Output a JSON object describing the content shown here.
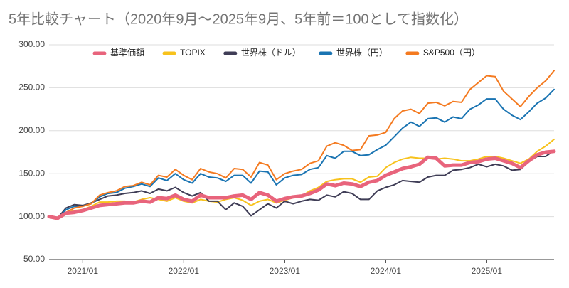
{
  "chart_data": {
    "type": "line",
    "title": "5年比較チャート（2020年9月～2025年9月、5年前＝100として指数化）",
    "categories": [
      null,
      null,
      null,
      null,
      "2021/01",
      null,
      null,
      null,
      null,
      null,
      null,
      null,
      null,
      null,
      null,
      null,
      "2022/01",
      null,
      null,
      null,
      null,
      null,
      null,
      null,
      null,
      null,
      null,
      null,
      "2023/01",
      null,
      null,
      null,
      null,
      null,
      null,
      null,
      null,
      null,
      null,
      null,
      "2024/01",
      null,
      null,
      null,
      null,
      null,
      null,
      null,
      null,
      null,
      null,
      null,
      "2025/01",
      null,
      null,
      null,
      null,
      null,
      null,
      null,
      null
    ],
    "series": [
      {
        "name": "基準価額",
        "color": "#e8647c",
        "values": [
          100,
          98,
          104,
          105,
          107,
          110,
          113,
          114,
          115,
          116,
          116,
          118,
          117,
          122,
          121,
          125,
          120,
          118,
          125,
          122,
          122,
          122,
          124,
          125,
          120,
          128,
          125,
          118,
          121,
          123,
          124,
          127,
          131,
          138,
          136,
          139,
          138,
          135,
          140,
          142,
          148,
          152,
          156,
          158,
          161,
          169,
          168,
          159,
          160,
          160,
          163,
          164,
          167,
          168,
          165,
          162,
          157,
          165,
          172,
          175,
          176
        ]
      },
      {
        "name": "TOPIX",
        "color": "#f7c21c",
        "values": [
          100,
          97,
          105,
          107,
          108,
          112,
          117,
          117,
          118,
          118,
          117,
          120,
          122,
          120,
          118,
          122,
          118,
          116,
          120,
          118,
          117,
          120,
          122,
          119,
          113,
          118,
          120,
          116,
          119,
          122,
          124,
          130,
          134,
          141,
          143,
          144,
          144,
          140,
          146,
          147,
          157,
          163,
          167,
          169,
          168,
          168,
          167,
          168,
          167,
          165,
          165,
          167,
          170,
          170,
          168,
          165,
          162,
          167,
          176,
          182,
          190
        ]
      },
      {
        "name": "世界株（ドル）",
        "color": "#3f3d56",
        "values": [
          100,
          98,
          110,
          114,
          113,
          116,
          120,
          124,
          125,
          127,
          128,
          130,
          127,
          132,
          130,
          134,
          128,
          124,
          128,
          118,
          118,
          108,
          116,
          112,
          101,
          108,
          115,
          110,
          118,
          115,
          118,
          120,
          119,
          125,
          123,
          129,
          127,
          120,
          120,
          130,
          134,
          137,
          142,
          141,
          140,
          146,
          148,
          148,
          154,
          155,
          157,
          161,
          158,
          161,
          159,
          154,
          155,
          164,
          170,
          170,
          177
        ]
      },
      {
        "name": "世界株（円）",
        "color": "#1a74b2",
        "values": [
          100,
          97,
          108,
          112,
          112,
          115,
          123,
          127,
          128,
          133,
          135,
          138,
          135,
          145,
          142,
          150,
          143,
          139,
          150,
          146,
          145,
          141,
          148,
          148,
          139,
          153,
          152,
          137,
          145,
          148,
          149,
          155,
          157,
          171,
          168,
          176,
          176,
          171,
          172,
          178,
          183,
          193,
          203,
          210,
          205,
          214,
          215,
          210,
          216,
          214,
          225,
          230,
          237,
          237,
          225,
          218,
          213,
          222,
          232,
          238,
          248
        ]
      },
      {
        "name": "S&P500（円）",
        "color": "#f47a20",
        "values": [
          100,
          97,
          105,
          110,
          112,
          115,
          125,
          128,
          130,
          135,
          136,
          140,
          137,
          148,
          146,
          155,
          148,
          143,
          156,
          152,
          150,
          145,
          156,
          155,
          146,
          163,
          160,
          143,
          150,
          153,
          155,
          162,
          165,
          182,
          186,
          183,
          177,
          178,
          194,
          195,
          198,
          214,
          223,
          225,
          220,
          232,
          233,
          229,
          234,
          233,
          248,
          256,
          264,
          263,
          246,
          237,
          228,
          240,
          250,
          258,
          270
        ]
      }
    ],
    "ylim": [
      50,
      300
    ],
    "yticks": [
      {
        "value": 50,
        "label": "50.00"
      },
      {
        "value": 100,
        "label": "100.00"
      },
      {
        "value": 150,
        "label": "150.00"
      },
      {
        "value": 200,
        "label": "200.00"
      },
      {
        "value": 250,
        "label": "250.00"
      },
      {
        "value": 300,
        "label": "300.00"
      }
    ],
    "grid": true,
    "legend": "top"
  }
}
